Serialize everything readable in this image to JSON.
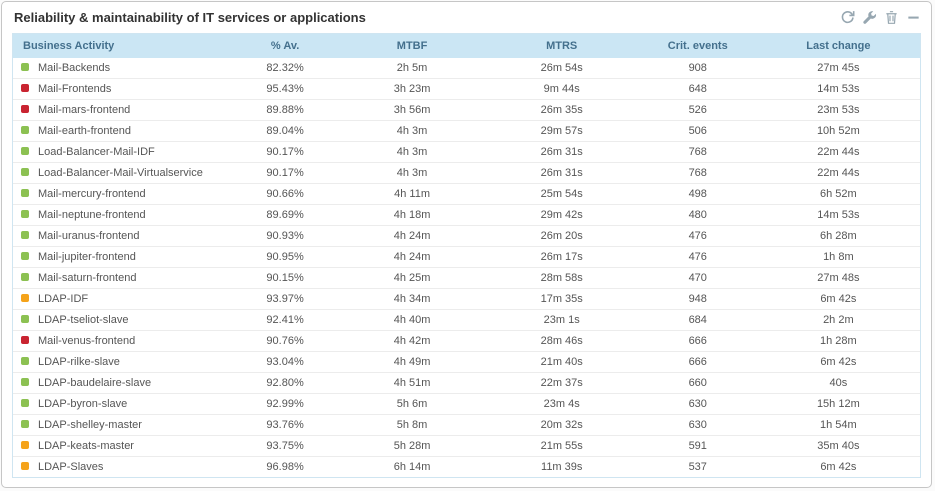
{
  "panel": {
    "title": "Reliability & maintainability of IT services or applications"
  },
  "toolbar": {
    "refresh": "refresh",
    "configure": "configure",
    "delete": "delete",
    "collapse": "collapse"
  },
  "colors": {
    "green": "#8cc152",
    "red": "#c92431",
    "orange": "#f5a31a",
    "header_bg": "#cbe6f4",
    "header_text": "#44708d",
    "icon": "#97a7b1"
  },
  "table": {
    "columns": [
      "Business Activity",
      "% Av.",
      "MTBF",
      "MTRS",
      "Crit. events",
      "Last change"
    ],
    "rows": [
      {
        "status": "green",
        "name": "Mail-Backends",
        "availability": "82.32%",
        "mtbf": "2h 5m",
        "mtrs": "26m 54s",
        "crit": "908",
        "last": "27m 45s"
      },
      {
        "status": "red",
        "name": "Mail-Frontends",
        "availability": "95.43%",
        "mtbf": "3h 23m",
        "mtrs": "9m 44s",
        "crit": "648",
        "last": "14m 53s"
      },
      {
        "status": "red",
        "name": "Mail-mars-frontend",
        "availability": "89.88%",
        "mtbf": "3h 56m",
        "mtrs": "26m 35s",
        "crit": "526",
        "last": "23m 53s"
      },
      {
        "status": "green",
        "name": "Mail-earth-frontend",
        "availability": "89.04%",
        "mtbf": "4h 3m",
        "mtrs": "29m 57s",
        "crit": "506",
        "last": "10h 52m"
      },
      {
        "status": "green",
        "name": "Load-Balancer-Mail-IDF",
        "availability": "90.17%",
        "mtbf": "4h 3m",
        "mtrs": "26m 31s",
        "crit": "768",
        "last": "22m 44s"
      },
      {
        "status": "green",
        "name": "Load-Balancer-Mail-Virtualservice",
        "availability": "90.17%",
        "mtbf": "4h 3m",
        "mtrs": "26m 31s",
        "crit": "768",
        "last": "22m 44s"
      },
      {
        "status": "green",
        "name": "Mail-mercury-frontend",
        "availability": "90.66%",
        "mtbf": "4h 11m",
        "mtrs": "25m 54s",
        "crit": "498",
        "last": "6h 52m"
      },
      {
        "status": "green",
        "name": "Mail-neptune-frontend",
        "availability": "89.69%",
        "mtbf": "4h 18m",
        "mtrs": "29m 42s",
        "crit": "480",
        "last": "14m 53s"
      },
      {
        "status": "green",
        "name": "Mail-uranus-frontend",
        "availability": "90.93%",
        "mtbf": "4h 24m",
        "mtrs": "26m 20s",
        "crit": "476",
        "last": "6h 28m"
      },
      {
        "status": "green",
        "name": "Mail-jupiter-frontend",
        "availability": "90.95%",
        "mtbf": "4h 24m",
        "mtrs": "26m 17s",
        "crit": "476",
        "last": "1h 8m"
      },
      {
        "status": "green",
        "name": "Mail-saturn-frontend",
        "availability": "90.15%",
        "mtbf": "4h 25m",
        "mtrs": "28m 58s",
        "crit": "470",
        "last": "27m 48s"
      },
      {
        "status": "orange",
        "name": "LDAP-IDF",
        "availability": "93.97%",
        "mtbf": "4h 34m",
        "mtrs": "17m 35s",
        "crit": "948",
        "last": "6m 42s"
      },
      {
        "status": "green",
        "name": "LDAP-tseliot-slave",
        "availability": "92.41%",
        "mtbf": "4h 40m",
        "mtrs": "23m 1s",
        "crit": "684",
        "last": "2h 2m"
      },
      {
        "status": "red",
        "name": "Mail-venus-frontend",
        "availability": "90.76%",
        "mtbf": "4h 42m",
        "mtrs": "28m 46s",
        "crit": "666",
        "last": "1h 28m"
      },
      {
        "status": "green",
        "name": "LDAP-rilke-slave",
        "availability": "93.04%",
        "mtbf": "4h 49m",
        "mtrs": "21m 40s",
        "crit": "666",
        "last": "6m 42s"
      },
      {
        "status": "green",
        "name": "LDAP-baudelaire-slave",
        "availability": "92.80%",
        "mtbf": "4h 51m",
        "mtrs": "22m 37s",
        "crit": "660",
        "last": "40s"
      },
      {
        "status": "green",
        "name": "LDAP-byron-slave",
        "availability": "92.99%",
        "mtbf": "5h 6m",
        "mtrs": "23m 4s",
        "crit": "630",
        "last": "15h 12m"
      },
      {
        "status": "green",
        "name": "LDAP-shelley-master",
        "availability": "93.76%",
        "mtbf": "5h 8m",
        "mtrs": "20m 32s",
        "crit": "630",
        "last": "1h 54m"
      },
      {
        "status": "orange",
        "name": "LDAP-keats-master",
        "availability": "93.75%",
        "mtbf": "5h 28m",
        "mtrs": "21m 55s",
        "crit": "591",
        "last": "35m 40s"
      },
      {
        "status": "orange",
        "name": "LDAP-Slaves",
        "availability": "96.98%",
        "mtbf": "6h 14m",
        "mtrs": "11m 39s",
        "crit": "537",
        "last": "6m 42s"
      }
    ]
  }
}
